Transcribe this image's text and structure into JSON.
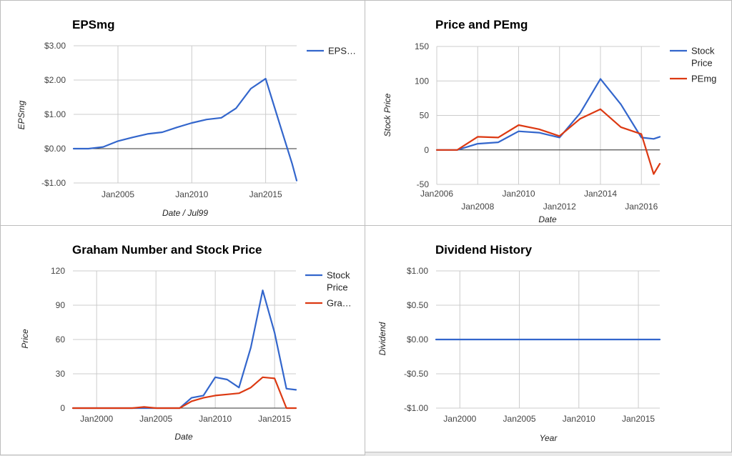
{
  "colors": {
    "blue": "#3366cc",
    "red": "#dc3912"
  },
  "chart_data": [
    {
      "type": "line",
      "title": "EPSmg",
      "xlabel": "Date / Jul99",
      "ylabel": "EPSmg",
      "xlim": [
        2002,
        2017.1
      ],
      "ylim": [
        -1,
        3
      ],
      "y_ticks": [
        3,
        2,
        1,
        0,
        -1
      ],
      "y_tick_labels": [
        "$3.00",
        "$2.00",
        "$1.00",
        "$0.00",
        "-$1.00"
      ],
      "x_ticks": [
        2005,
        2010,
        2015
      ],
      "x_tick_labels": [
        "Jan2005",
        "Jan2010",
        "Jan2015"
      ],
      "legend": "right",
      "series": [
        {
          "name": "EPS…",
          "color": "#3366cc",
          "x": [
            2002,
            2003,
            2004,
            2005,
            2006,
            2007,
            2008,
            2009,
            2010,
            2011,
            2012,
            2013,
            2014,
            2015,
            2016,
            2016.8,
            2017.1
          ],
          "values": [
            0.0,
            0.0,
            0.05,
            0.22,
            0.33,
            0.43,
            0.48,
            0.62,
            0.75,
            0.85,
            0.9,
            1.18,
            1.75,
            2.04,
            0.65,
            -0.45,
            -0.93
          ]
        }
      ]
    },
    {
      "type": "line",
      "title": "Price and PEmg",
      "xlabel": "Date",
      "ylabel": "Stock Price",
      "xlim": [
        2006,
        2016.9
      ],
      "ylim": [
        -50,
        150
      ],
      "y_ticks": [
        150,
        100,
        50,
        0,
        -50
      ],
      "y_tick_labels": [
        "150",
        "100",
        "50",
        "0",
        "-50"
      ],
      "x_ticks_top": [
        2006,
        2010,
        2014
      ],
      "x_tick_labels_top": [
        "Jan2006",
        "Jan2010",
        "Jan2014"
      ],
      "x_ticks_bottom": [
        2008,
        2012,
        2016
      ],
      "x_tick_labels_bottom": [
        "Jan2008",
        "Jan2012",
        "Jan2016"
      ],
      "legend": "right",
      "series": [
        {
          "name": "Stock Price",
          "color": "#3366cc",
          "x": [
            2006,
            2007,
            2008,
            2009,
            2010,
            2011,
            2012,
            2013,
            2014,
            2015,
            2016,
            2016.6,
            2016.9
          ],
          "values": [
            0,
            0,
            9,
            11,
            27,
            25,
            18,
            53,
            103,
            66,
            18,
            16,
            19
          ]
        },
        {
          "name": "PEmg",
          "color": "#dc3912",
          "x": [
            2006,
            2007,
            2008,
            2009,
            2010,
            2011,
            2012,
            2013,
            2014,
            2015,
            2016,
            2016.6,
            2016.9
          ],
          "values": [
            0,
            0,
            19,
            18,
            36,
            30,
            20,
            45,
            59,
            33,
            23,
            -35,
            -20
          ]
        }
      ]
    },
    {
      "type": "line",
      "title": "Graham Number and Stock Price",
      "xlabel": "Date",
      "ylabel": "Price",
      "xlim": [
        1998,
        2016.8
      ],
      "ylim": [
        0,
        120
      ],
      "y_ticks": [
        120,
        90,
        60,
        30,
        0
      ],
      "y_tick_labels": [
        "120",
        "90",
        "60",
        "30",
        "0"
      ],
      "x_ticks": [
        2000,
        2005,
        2010,
        2015
      ],
      "x_tick_labels": [
        "Jan2000",
        "Jan2005",
        "Jan2010",
        "Jan2015"
      ],
      "legend": "right",
      "series": [
        {
          "name": "Stock Price",
          "color": "#3366cc",
          "x": [
            1998,
            2003,
            2004,
            2006,
            2007,
            2008,
            2009,
            2010,
            2011,
            2012,
            2013,
            2014,
            2015,
            2016,
            2016.8
          ],
          "values": [
            0,
            0,
            0,
            0,
            0,
            9,
            11,
            27,
            25,
            18,
            53,
            103,
            66,
            17,
            16
          ]
        },
        {
          "name": "Gra…",
          "color": "#dc3912",
          "x": [
            1998,
            2003,
            2004,
            2005,
            2006,
            2007,
            2008,
            2009,
            2010,
            2011,
            2012,
            2013,
            2014,
            2015,
            2016,
            2016.8
          ],
          "values": [
            0,
            0,
            1,
            0,
            0,
            0,
            6,
            9,
            11,
            12,
            13,
            18,
            27,
            26,
            0,
            0
          ]
        }
      ]
    },
    {
      "type": "line",
      "title": "Dividend History",
      "xlabel": "Year",
      "ylabel": "Dividend",
      "xlim": [
        1998,
        2016.8
      ],
      "ylim": [
        -1,
        1
      ],
      "y_ticks": [
        1,
        0.5,
        0,
        -0.5,
        -1
      ],
      "y_tick_labels": [
        "$1.00",
        "$0.50",
        "$0.00",
        "-$0.50",
        "-$1.00"
      ],
      "x_ticks": [
        2000,
        2005,
        2010,
        2015
      ],
      "x_tick_labels": [
        "Jan2000",
        "Jan2005",
        "Jan2010",
        "Jan2015"
      ],
      "legend": "none",
      "series": [
        {
          "color": "#3366cc",
          "x": [
            1998,
            2016.8
          ],
          "values": [
            0,
            0
          ]
        }
      ]
    }
  ]
}
